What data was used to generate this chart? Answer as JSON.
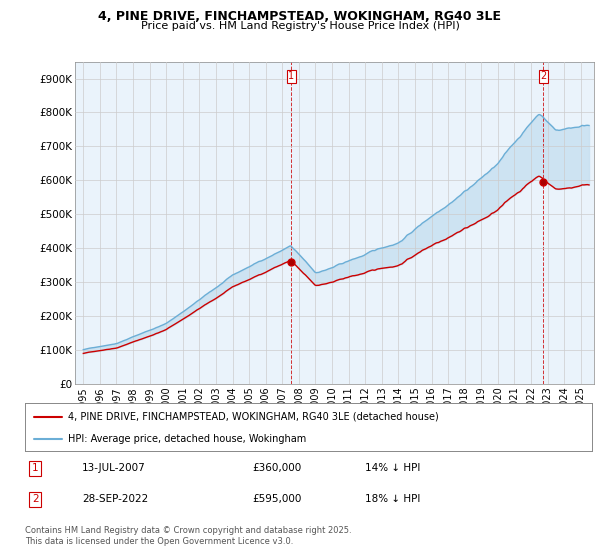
{
  "title1": "4, PINE DRIVE, FINCHAMPSTEAD, WOKINGHAM, RG40 3LE",
  "title2": "Price paid vs. HM Land Registry's House Price Index (HPI)",
  "ylim": [
    0,
    950000
  ],
  "yticks": [
    0,
    100000,
    200000,
    300000,
    400000,
    500000,
    600000,
    700000,
    800000,
    900000
  ],
  "ytick_labels": [
    "£0",
    "£100K",
    "£200K",
    "£300K",
    "£400K",
    "£500K",
    "£600K",
    "£700K",
    "£800K",
    "£900K"
  ],
  "background_color": "#ffffff",
  "plot_bg_color": "#eaf3fb",
  "grid_color": "#cccccc",
  "hpi_color": "#6baed6",
  "price_color": "#cc0000",
  "fill_color": "#c6dff0",
  "purchase1_year": 2007.54,
  "purchase1_price": 360000,
  "purchase2_year": 2022.74,
  "purchase2_price": 595000,
  "legend_label1": "4, PINE DRIVE, FINCHAMPSTEAD, WOKINGHAM, RG40 3LE (detached house)",
  "legend_label2": "HPI: Average price, detached house, Wokingham",
  "footnote": "Contains HM Land Registry data © Crown copyright and database right 2025.\nThis data is licensed under the Open Government Licence v3.0.",
  "xlim_start": 1994.5,
  "xlim_end": 2025.8
}
